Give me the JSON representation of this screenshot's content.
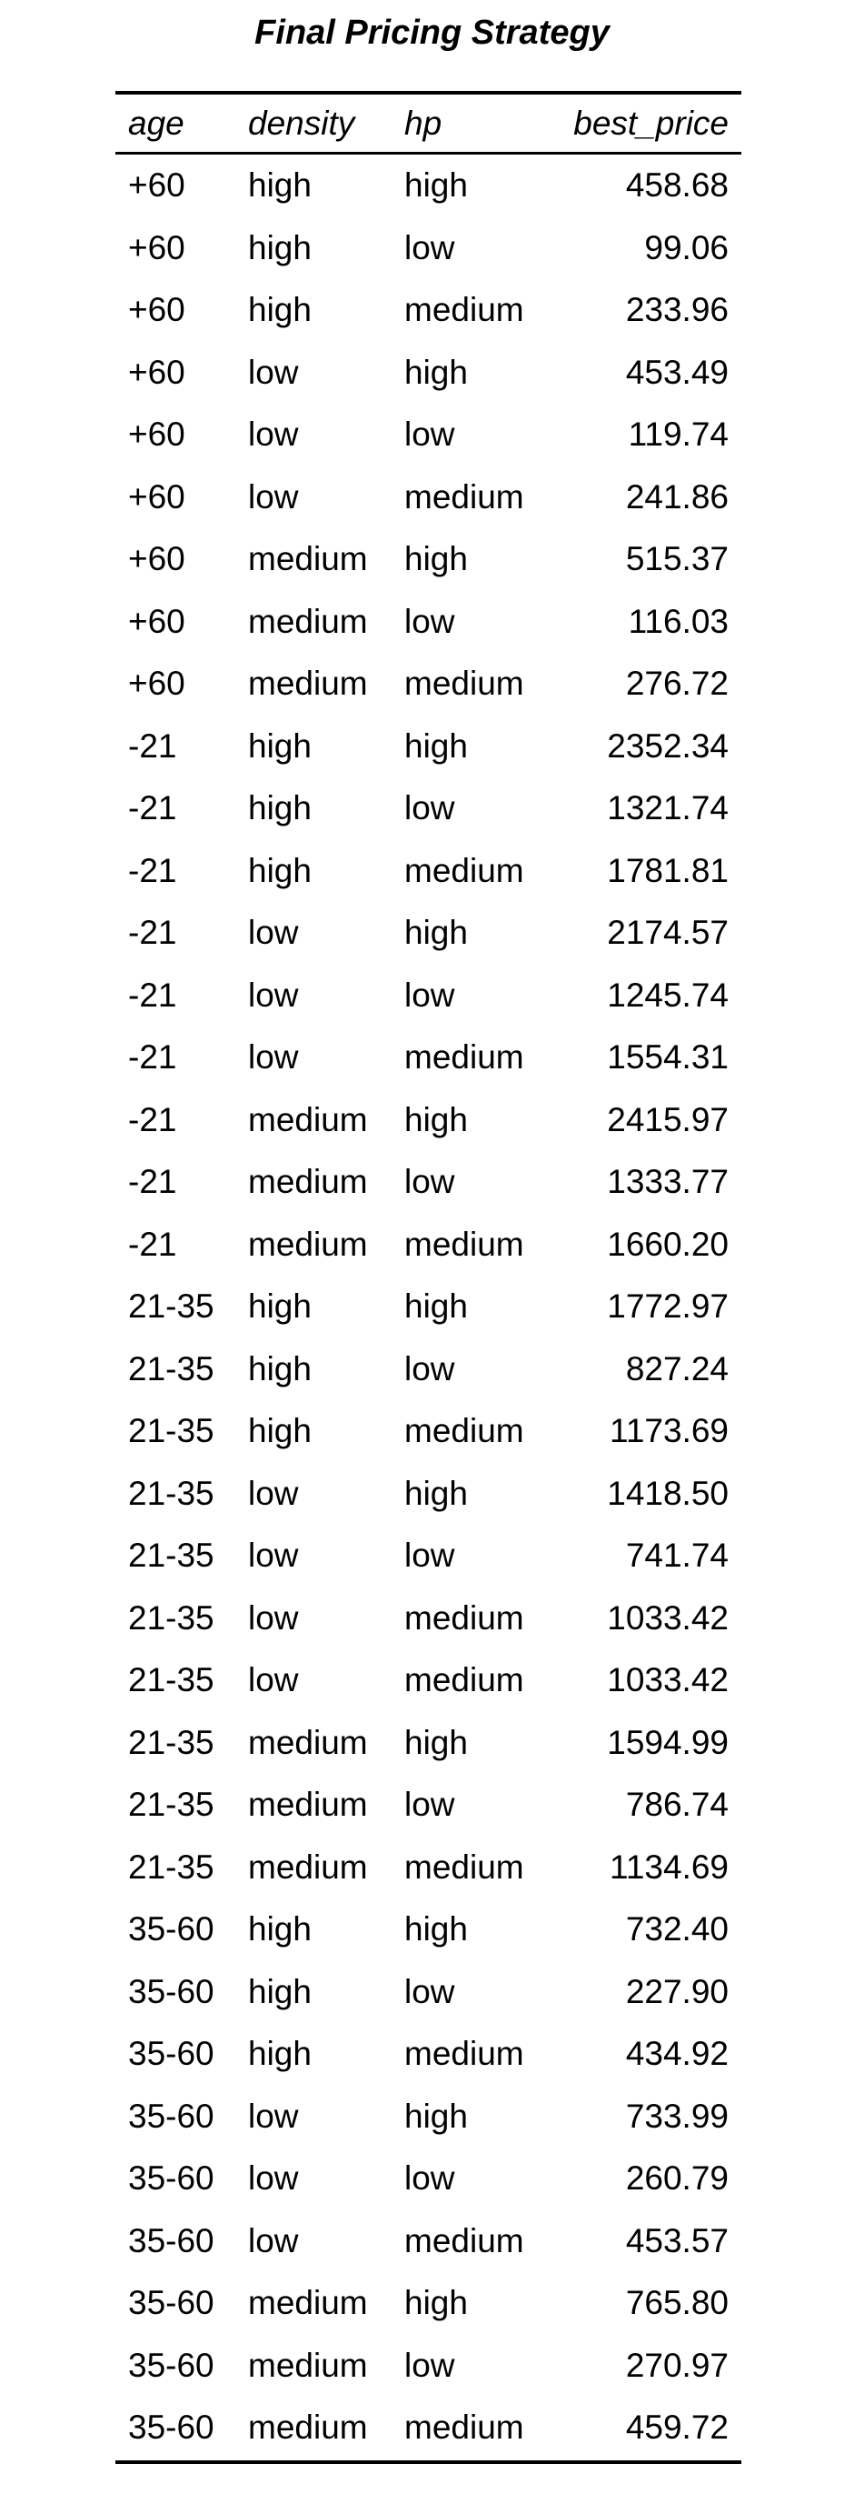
{
  "title": "Final Pricing Strategy",
  "columns": [
    "age",
    "density",
    "hp",
    "best_price"
  ],
  "rows": [
    [
      "+60",
      "high",
      "high",
      "458.68"
    ],
    [
      "+60",
      "high",
      "low",
      "99.06"
    ],
    [
      "+60",
      "high",
      "medium",
      "233.96"
    ],
    [
      "+60",
      "low",
      "high",
      "453.49"
    ],
    [
      "+60",
      "low",
      "low",
      "119.74"
    ],
    [
      "+60",
      "low",
      "medium",
      "241.86"
    ],
    [
      "+60",
      "medium",
      "high",
      "515.37"
    ],
    [
      "+60",
      "medium",
      "low",
      "116.03"
    ],
    [
      "+60",
      "medium",
      "medium",
      "276.72"
    ],
    [
      "-21",
      "high",
      "high",
      "2352.34"
    ],
    [
      "-21",
      "high",
      "low",
      "1321.74"
    ],
    [
      "-21",
      "high",
      "medium",
      "1781.81"
    ],
    [
      "-21",
      "low",
      "high",
      "2174.57"
    ],
    [
      "-21",
      "low",
      "low",
      "1245.74"
    ],
    [
      "-21",
      "low",
      "medium",
      "1554.31"
    ],
    [
      "-21",
      "medium",
      "high",
      "2415.97"
    ],
    [
      "-21",
      "medium",
      "low",
      "1333.77"
    ],
    [
      "-21",
      "medium",
      "medium",
      "1660.20"
    ],
    [
      "21-35",
      "high",
      "high",
      "1772.97"
    ],
    [
      "21-35",
      "high",
      "low",
      "827.24"
    ],
    [
      "21-35",
      "high",
      "medium",
      "1173.69"
    ],
    [
      "21-35",
      "low",
      "high",
      "1418.50"
    ],
    [
      "21-35",
      "low",
      "low",
      "741.74"
    ],
    [
      "21-35",
      "low",
      "medium",
      "1033.42"
    ],
    [
      "21-35",
      "low",
      "medium",
      "1033.42"
    ],
    [
      "21-35",
      "medium",
      "high",
      "1594.99"
    ],
    [
      "21-35",
      "medium",
      "low",
      "786.74"
    ],
    [
      "21-35",
      "medium",
      "medium",
      "1134.69"
    ],
    [
      "35-60",
      "high",
      "high",
      "732.40"
    ],
    [
      "35-60",
      "high",
      "low",
      "227.90"
    ],
    [
      "35-60",
      "high",
      "medium",
      "434.92"
    ],
    [
      "35-60",
      "low",
      "high",
      "733.99"
    ],
    [
      "35-60",
      "low",
      "low",
      "260.79"
    ],
    [
      "35-60",
      "low",
      "medium",
      "453.57"
    ],
    [
      "35-60",
      "medium",
      "high",
      "765.80"
    ],
    [
      "35-60",
      "medium",
      "low",
      "270.97"
    ],
    [
      "35-60",
      "medium",
      "medium",
      "459.72"
    ]
  ]
}
